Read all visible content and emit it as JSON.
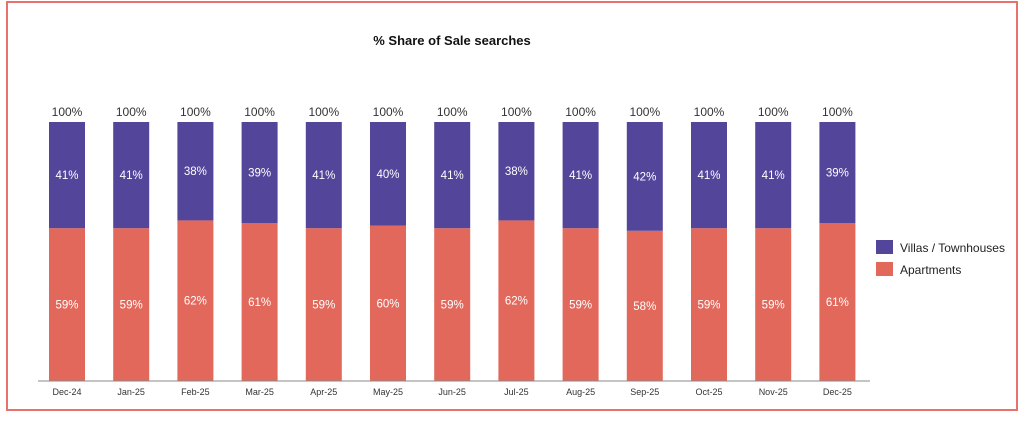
{
  "chart_data": {
    "type": "bar",
    "stacked": true,
    "title": "% Share of Sale searches",
    "xlabel": "",
    "ylabel": "",
    "ylim": [
      0,
      100
    ],
    "grid": false,
    "legend_position": "right",
    "categories": [
      "Dec-24",
      "Jan-25",
      "Feb-25",
      "Mar-25",
      "Apr-25",
      "May-25",
      "Jun-25",
      "Jul-25",
      "Aug-25",
      "Sep-25",
      "Oct-25",
      "Nov-25",
      "Dec-25"
    ],
    "totals_label": "100%",
    "series": [
      {
        "name": "Apartments",
        "color": "#e2685b",
        "values": [
          59,
          59,
          62,
          61,
          59,
          60,
          59,
          62,
          59,
          58,
          59,
          59,
          61
        ]
      },
      {
        "name": "Villas / Townhouses",
        "color": "#52459a",
        "values": [
          41,
          41,
          38,
          39,
          41,
          40,
          41,
          38,
          41,
          42,
          41,
          41,
          39
        ]
      }
    ]
  }
}
